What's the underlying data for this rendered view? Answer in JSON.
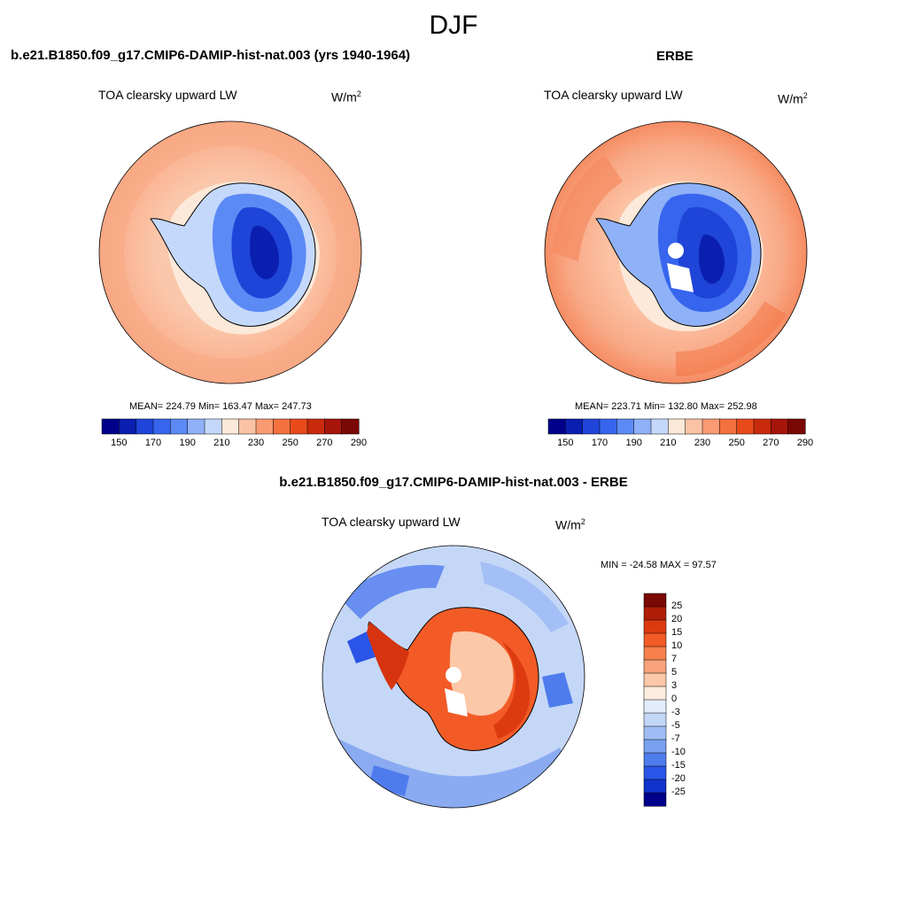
{
  "season": "DJF",
  "panels": {
    "model": {
      "title": "b.e21.B1850.f09_g17.CMIP6-DAMIP-hist-nat.003 (yrs 1940-1964)",
      "variable": "TOA clearsky upward LW",
      "units": "W/m",
      "units_exp": "2",
      "stats": "MEAN= 224.79  Min= 163.47  Max= 247.73"
    },
    "obs": {
      "title": "ERBE",
      "variable": "TOA clearsky upward LW",
      "units": "W/m",
      "units_exp": "2",
      "stats": "MEAN= 223.71  Min= 132.80  Max= 252.98"
    },
    "diff": {
      "title": "b.e21.B1850.f09_g17.CMIP6-DAMIP-hist-nat.003 - ERBE",
      "variable": "TOA clearsky upward LW",
      "units": "W/m",
      "units_exp": "2",
      "stats": "MIN = -24.58 MAX =  97.57"
    }
  },
  "colorbars": {
    "abs_labels": [
      "150",
      "170",
      "190",
      "210",
      "230",
      "250",
      "270",
      "290"
    ],
    "abs_colors": [
      "#00008b",
      "#0a1fb0",
      "#1f44d8",
      "#3765ee",
      "#5c8af5",
      "#8fb1f7",
      "#c4d8fb",
      "#fde9d9",
      "#fbc3a4",
      "#f89a72",
      "#f4713f",
      "#e84a1c",
      "#c92a0c",
      "#a6150a",
      "#7a0804"
    ],
    "diff_labels": [
      "25",
      "20",
      "15",
      "10",
      "7",
      "5",
      "3",
      "0",
      "-3",
      "-5",
      "-7",
      "-10",
      "-15",
      "-20",
      "-25"
    ],
    "diff_colors": [
      "#7a0804",
      "#b01d08",
      "#de3a12",
      "#f25b26",
      "#f5804c",
      "#f7a27a",
      "#fbc8a8",
      "#fdebdd",
      "#e3ecfb",
      "#c5d7f7",
      "#9fbdf4",
      "#7aa0f0",
      "#4f7ced",
      "#2a55e6",
      "#1032cc",
      "#00008b"
    ]
  },
  "colors": {
    "ocean_model": "#fbc7ab",
    "ocean_model_outer": "#f8a883",
    "ocean_obs": "#f9a987",
    "ocean_obs_outer": "#f58a60",
    "ice_light": "#dce8fb",
    "ice_mid": "#5f8cf2",
    "ice_deep": "#2250e0",
    "ice_core": "#0c2fc6",
    "diff_ocean": "#c5d7f7",
    "diff_ocean_dark": "#7aa0f0",
    "diff_land": "#ef6a3a",
    "diff_land_hot": "#d63410"
  }
}
